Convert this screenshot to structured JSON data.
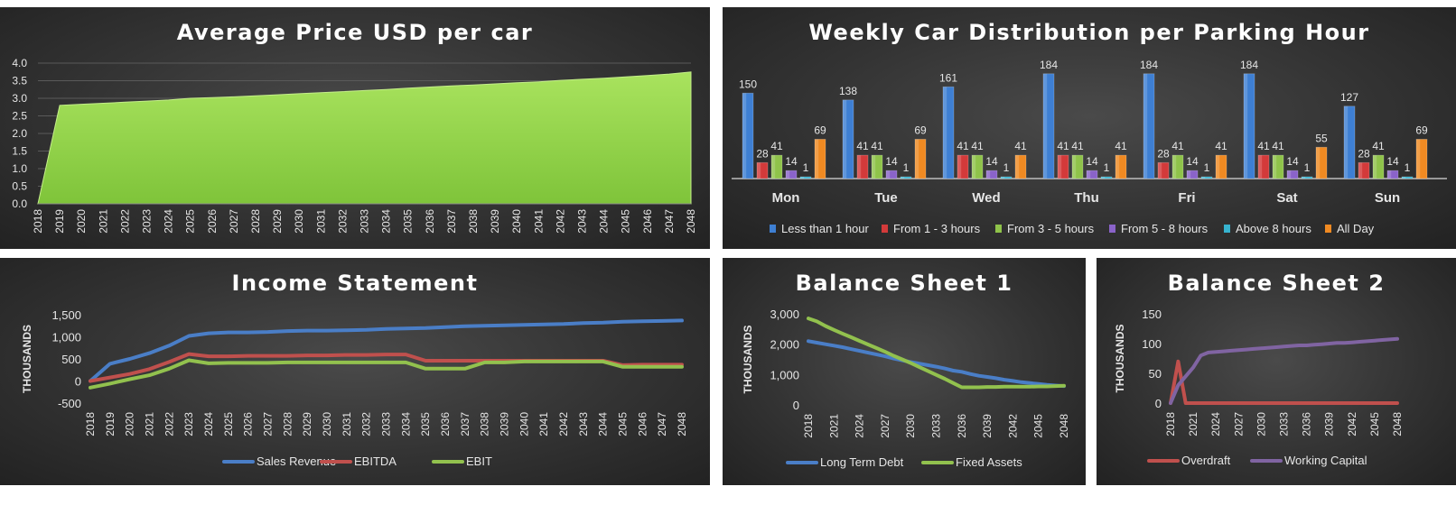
{
  "chart_data": [
    {
      "id": "avg_price",
      "type": "area",
      "title": "Average Price USD per car",
      "x": [
        "2018",
        "2019",
        "2020",
        "2021",
        "2022",
        "2023",
        "2024",
        "2025",
        "2026",
        "2027",
        "2028",
        "2029",
        "2030",
        "2031",
        "2032",
        "2033",
        "2034",
        "2035",
        "2036",
        "2037",
        "2038",
        "2039",
        "2040",
        "2041",
        "2042",
        "2043",
        "2044",
        "2045",
        "2046",
        "2047",
        "2048"
      ],
      "values": [
        0,
        2.8,
        2.83,
        2.86,
        2.89,
        2.92,
        2.95,
        3.0,
        3.02,
        3.04,
        3.07,
        3.1,
        3.13,
        3.16,
        3.19,
        3.22,
        3.25,
        3.29,
        3.32,
        3.35,
        3.38,
        3.41,
        3.44,
        3.47,
        3.51,
        3.54,
        3.57,
        3.61,
        3.65,
        3.69,
        3.75
      ],
      "yticks": [
        "0.0",
        "0.5",
        "1.0",
        "1.5",
        "2.0",
        "2.5",
        "3.0",
        "3.5",
        "4.0"
      ],
      "ylim": [
        0,
        4
      ],
      "fill_color": "#92d050",
      "grid": true
    },
    {
      "id": "weekly",
      "type": "bar",
      "title": "Weekly Car Distribution per Parking Hour",
      "categories": [
        "Mon",
        "Tue",
        "Wed",
        "Thu",
        "Fri",
        "Sat",
        "Sun"
      ],
      "series": [
        {
          "name": "Less than 1 hour",
          "color": "#3e7fd3",
          "values": [
            150,
            138,
            161,
            184,
            184,
            184,
            127
          ]
        },
        {
          "name": "From 1 - 3 hours",
          "color": "#d33a3a",
          "values": [
            28,
            41,
            41,
            41,
            28,
            41,
            28
          ]
        },
        {
          "name": "From 3 - 5 hours",
          "color": "#8fc34a",
          "values": [
            41,
            41,
            41,
            41,
            41,
            41,
            41
          ]
        },
        {
          "name": "From 5 - 8 hours",
          "color": "#8a63c9",
          "values": [
            14,
            14,
            14,
            14,
            14,
            14,
            14
          ]
        },
        {
          "name": "Above 8 hours",
          "color": "#37b3cf",
          "values": [
            1,
            1,
            1,
            1,
            1,
            1,
            1
          ]
        },
        {
          "name": "All Day",
          "color": "#f08a22",
          "values": [
            69,
            69,
            41,
            41,
            41,
            55,
            69
          ]
        }
      ],
      "ylim": [
        0,
        190
      ],
      "legend": "bottom"
    },
    {
      "id": "income",
      "type": "line",
      "title": "Income Statement",
      "ylabel": "THOUSANDS",
      "x": [
        "2018",
        "2019",
        "2020",
        "2021",
        "2022",
        "2023",
        "2024",
        "2025",
        "2026",
        "2027",
        "2028",
        "2029",
        "2030",
        "2031",
        "2032",
        "2033",
        "2034",
        "2035",
        "2036",
        "2037",
        "2038",
        "2039",
        "2040",
        "2041",
        "2042",
        "2043",
        "2044",
        "2045",
        "2046",
        "2047",
        "2048"
      ],
      "series": [
        {
          "name": "Sales Revenue",
          "color": "#4a7ec7",
          "values": [
            0,
            390,
            500,
            630,
            800,
            1020,
            1080,
            1100,
            1100,
            1110,
            1130,
            1140,
            1140,
            1150,
            1160,
            1180,
            1190,
            1200,
            1220,
            1240,
            1250,
            1260,
            1270,
            1280,
            1290,
            1310,
            1320,
            1340,
            1350,
            1360,
            1370
          ]
        },
        {
          "name": "EBITDA",
          "color": "#c0504d",
          "values": [
            0,
            80,
            160,
            270,
            430,
            610,
            560,
            560,
            570,
            570,
            570,
            580,
            580,
            590,
            590,
            600,
            600,
            460,
            460,
            460,
            460,
            460,
            460,
            460,
            460,
            460,
            460,
            360,
            370,
            370,
            370
          ]
        },
        {
          "name": "EBIT",
          "color": "#92c14e",
          "values": [
            -150,
            -60,
            40,
            130,
            280,
            470,
            400,
            410,
            410,
            410,
            420,
            420,
            420,
            420,
            420,
            420,
            420,
            280,
            280,
            280,
            420,
            420,
            440,
            440,
            440,
            440,
            440,
            320,
            320,
            320,
            320
          ]
        }
      ],
      "yticks": [
        "-500",
        "0",
        "500",
        "1,000",
        "1,500"
      ],
      "ylim": [
        -500,
        1500
      ],
      "legend": "bottom"
    },
    {
      "id": "bs1",
      "type": "line",
      "title": "Balance Sheet 1",
      "ylabel": "THOUSANDS",
      "x": [
        "2018",
        "2019",
        "2020",
        "2021",
        "2022",
        "2023",
        "2024",
        "2025",
        "2026",
        "2027",
        "2028",
        "2029",
        "2030",
        "2031",
        "2032",
        "2033",
        "2034",
        "2035",
        "2036",
        "2037",
        "2038",
        "2039",
        "2040",
        "2041",
        "2042",
        "2043",
        "2044",
        "2045",
        "2046",
        "2047",
        "2048"
      ],
      "xtick_labels": [
        "2018",
        "2021",
        "2024",
        "2027",
        "2030",
        "2033",
        "2036",
        "2039",
        "2042",
        "2045",
        "2048"
      ],
      "series": [
        {
          "name": "Long Term Debt",
          "color": "#4a7ec7",
          "values": [
            2100,
            2050,
            2000,
            1950,
            1900,
            1840,
            1780,
            1720,
            1660,
            1600,
            1530,
            1470,
            1410,
            1360,
            1310,
            1260,
            1200,
            1130,
            1090,
            1020,
            960,
            920,
            880,
            830,
            790,
            750,
            720,
            690,
            660,
            640,
            620
          ]
        },
        {
          "name": "Fixed Assets",
          "color": "#92c14e",
          "values": [
            2850,
            2750,
            2600,
            2470,
            2350,
            2230,
            2110,
            1990,
            1870,
            1750,
            1620,
            1500,
            1380,
            1250,
            1120,
            990,
            860,
            720,
            580,
            580,
            580,
            590,
            590,
            600,
            600,
            600,
            600,
            610,
            610,
            620,
            630
          ]
        }
      ],
      "yticks": [
        "0",
        "1,000",
        "2,000",
        "3,000"
      ],
      "ylim": [
        0,
        3000
      ],
      "legend": "bottom"
    },
    {
      "id": "bs2",
      "type": "line",
      "title": "Balance Sheet 2",
      "ylabel": "THOUSANDS",
      "x": [
        "2018",
        "2019",
        "2020",
        "2021",
        "2022",
        "2023",
        "2024",
        "2025",
        "2026",
        "2027",
        "2028",
        "2029",
        "2030",
        "2031",
        "2032",
        "2033",
        "2034",
        "2035",
        "2036",
        "2037",
        "2038",
        "2039",
        "2040",
        "2041",
        "2042",
        "2043",
        "2044",
        "2045",
        "2046",
        "2047",
        "2048"
      ],
      "xtick_labels": [
        "2018",
        "2021",
        "2024",
        "2027",
        "2030",
        "2033",
        "2036",
        "2039",
        "2042",
        "2045",
        "2048"
      ],
      "series": [
        {
          "name": "Overdraft",
          "color": "#c0504d",
          "values": [
            0,
            70,
            0,
            0,
            0,
            0,
            0,
            0,
            0,
            0,
            0,
            0,
            0,
            0,
            0,
            0,
            0,
            0,
            0,
            0,
            0,
            0,
            0,
            0,
            0,
            0,
            0,
            0,
            0,
            0,
            0
          ]
        },
        {
          "name": "Working Capital",
          "color": "#8064a2",
          "values": [
            0,
            30,
            45,
            60,
            80,
            85,
            86,
            87,
            88,
            89,
            90,
            91,
            92,
            93,
            94,
            95,
            96,
            97,
            97,
            98,
            99,
            100,
            101,
            101,
            102,
            103,
            104,
            105,
            106,
            107,
            108
          ]
        }
      ],
      "yticks": [
        "0",
        "50",
        "100",
        "150"
      ],
      "ylim": [
        0,
        150
      ],
      "legend": "bottom"
    }
  ]
}
